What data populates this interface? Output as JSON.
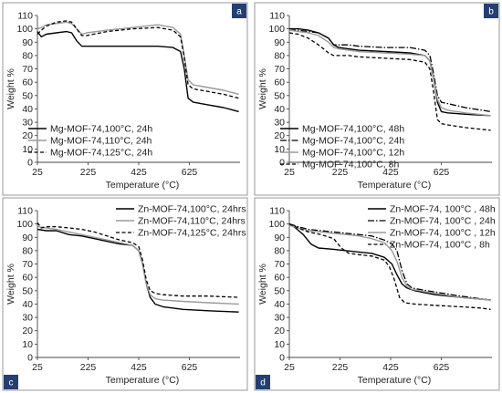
{
  "chart_data": [
    {
      "panel": "a",
      "type": "line",
      "xlabel": "Temperature (°C)",
      "ylabel": "Weight %",
      "xlim": [
        25,
        825
      ],
      "ylim": [
        0,
        110
      ],
      "xticks": [
        25,
        225,
        425,
        625
      ],
      "yticks": [
        0,
        10,
        20,
        30,
        40,
        50,
        60,
        70,
        80,
        90,
        100,
        110
      ],
      "legend_position": "bottom-left",
      "series": [
        {
          "name": "Mg-MOF-74,100°C, 24h",
          "style": "solid-black",
          "x": [
            25,
            40,
            60,
            100,
            140,
            160,
            180,
            200,
            220,
            300,
            400,
            500,
            560,
            590,
            605,
            620,
            640,
            700,
            760,
            820
          ],
          "y": [
            98,
            94,
            96,
            97,
            98,
            97,
            91,
            87,
            87,
            87,
            87,
            87,
            86,
            83,
            70,
            48,
            45,
            43,
            41,
            38
          ]
        },
        {
          "name": "Mg-MOF-74,110°C, 24h",
          "style": "solid-gray",
          "x": [
            25,
            40,
            60,
            100,
            140,
            160,
            180,
            200,
            220,
            300,
            400,
            500,
            560,
            590,
            605,
            620,
            640,
            700,
            760,
            820
          ],
          "y": [
            100,
            101,
            103,
            104,
            105,
            104,
            100,
            96,
            97,
            99,
            101,
            103,
            101,
            96,
            80,
            62,
            58,
            56,
            54,
            51
          ]
        },
        {
          "name": "Mg-MOF-74,125°C, 24h",
          "style": "dashed-black",
          "x": [
            25,
            40,
            60,
            100,
            140,
            160,
            180,
            200,
            220,
            300,
            400,
            500,
            560,
            590,
            605,
            620,
            640,
            700,
            760,
            820
          ],
          "y": [
            96,
            99,
            102,
            105,
            106,
            105,
            100,
            95,
            95,
            98,
            100,
            101,
            99,
            94,
            78,
            58,
            55,
            53,
            51,
            48
          ]
        }
      ]
    },
    {
      "panel": "b",
      "type": "line",
      "xlabel": "Temperature (°C)",
      "ylabel": "Weight %",
      "xlim": [
        25,
        825
      ],
      "ylim": [
        0,
        110
      ],
      "xticks": [
        25,
        225,
        425,
        625
      ],
      "yticks": [
        0,
        10,
        20,
        30,
        40,
        50,
        60,
        70,
        80,
        90,
        100,
        110
      ],
      "legend_position": "bottom-left",
      "series": [
        {
          "name": "Mg-MOF-74,100°C, 48h",
          "style": "solid-black",
          "x": [
            25,
            60,
            100,
            140,
            180,
            200,
            220,
            260,
            300,
            400,
            500,
            560,
            580,
            595,
            610,
            625,
            650,
            720,
            820
          ],
          "y": [
            100,
            100,
            99,
            97,
            93,
            88,
            86,
            85,
            84,
            83,
            82,
            80,
            76,
            62,
            45,
            38,
            37,
            36,
            35
          ]
        },
        {
          "name": "Mg-MOF-74,100°C, 24h",
          "style": "dashdot-black",
          "x": [
            25,
            60,
            100,
            140,
            180,
            200,
            220,
            260,
            300,
            400,
            500,
            560,
            580,
            595,
            610,
            625,
            650,
            720,
            820
          ],
          "y": [
            99,
            99,
            98,
            97,
            93,
            88,
            88,
            88,
            87,
            86,
            86,
            84,
            80,
            66,
            50,
            45,
            44,
            41,
            38
          ]
        },
        {
          "name": "Mg-MOF-74,100°C, 12h",
          "style": "solid-gray",
          "x": [
            25,
            60,
            100,
            140,
            180,
            200,
            220,
            260,
            300,
            400,
            500,
            560,
            580,
            595,
            610,
            625,
            650,
            720,
            820
          ],
          "y": [
            99,
            98,
            97,
            95,
            90,
            86,
            85,
            84,
            83,
            82,
            81,
            80,
            76,
            62,
            47,
            41,
            39,
            37,
            35
          ]
        },
        {
          "name": "Mg-MOF-74,100°C, 8h",
          "style": "dashed-black",
          "x": [
            25,
            60,
            100,
            140,
            180,
            200,
            220,
            260,
            300,
            400,
            500,
            560,
            580,
            595,
            610,
            625,
            650,
            720,
            820
          ],
          "y": [
            97,
            96,
            93,
            88,
            82,
            80,
            80,
            80,
            79,
            78,
            77,
            75,
            70,
            52,
            32,
            29,
            28,
            26,
            24
          ]
        }
      ]
    },
    {
      "panel": "c",
      "type": "line",
      "xlabel": "Temperature (°C)",
      "ylabel": "Weight %",
      "xlim": [
        25,
        825
      ],
      "ylim": [
        0,
        110
      ],
      "xticks": [
        25,
        225,
        425,
        625
      ],
      "yticks": [
        0,
        10,
        20,
        30,
        40,
        50,
        60,
        70,
        80,
        90,
        100,
        110
      ],
      "legend_position": "top-right",
      "series": [
        {
          "name": "Zn-MOF-74,100°C, 24hrs",
          "style": "solid-black",
          "x": [
            25,
            60,
            100,
            150,
            200,
            250,
            300,
            350,
            400,
            425,
            440,
            455,
            470,
            490,
            520,
            600,
            700,
            820
          ],
          "y": [
            96,
            95,
            95,
            92,
            91,
            89,
            87,
            85,
            84,
            80,
            70,
            55,
            45,
            40,
            38,
            36,
            35,
            34
          ]
        },
        {
          "name": "Zn-MOF-74,110°C, 24hrs",
          "style": "solid-gray",
          "x": [
            25,
            60,
            100,
            150,
            200,
            250,
            300,
            350,
            400,
            425,
            440,
            455,
            470,
            490,
            520,
            600,
            700,
            820
          ],
          "y": [
            98,
            97,
            96,
            94,
            92,
            90,
            88,
            86,
            84,
            80,
            70,
            55,
            47,
            44,
            43,
            42,
            41,
            40
          ]
        },
        {
          "name": "Zn-MOF-74,125°C, 24hrs",
          "style": "dashed-black",
          "x": [
            25,
            40,
            60,
            100,
            150,
            200,
            250,
            300,
            350,
            400,
            425,
            440,
            455,
            470,
            490,
            520,
            600,
            700,
            820
          ],
          "y": [
            101,
            97,
            98,
            98,
            97,
            96,
            94,
            91,
            88,
            86,
            83,
            73,
            58,
            50,
            48,
            47,
            46,
            46,
            45
          ]
        }
      ]
    },
    {
      "panel": "d",
      "type": "line",
      "xlabel": "Temperature (°C)",
      "ylabel": "Weight %",
      "xlim": [
        25,
        825
      ],
      "ylim": [
        0,
        110
      ],
      "xticks": [
        25,
        225,
        425,
        625
      ],
      "yticks": [
        0,
        10,
        20,
        30,
        40,
        50,
        60,
        70,
        80,
        90,
        100,
        110
      ],
      "legend_position": "top-right",
      "series": [
        {
          "name": "Zn-MOF-74, 100°C , 48h",
          "style": "solid-black",
          "x": [
            25,
            50,
            80,
            110,
            140,
            200,
            250,
            300,
            350,
            400,
            430,
            450,
            470,
            490,
            520,
            600,
            700,
            820
          ],
          "y": [
            100,
            97,
            92,
            85,
            82,
            81,
            80,
            79,
            78,
            75,
            70,
            62,
            55,
            52,
            50,
            47,
            45,
            43
          ]
        },
        {
          "name": "Zn-MOF-74, 100°C , 24h",
          "style": "dashdot-black",
          "x": [
            25,
            60,
            100,
            150,
            200,
            250,
            300,
            350,
            400,
            430,
            450,
            470,
            490,
            510,
            540,
            600,
            700,
            820
          ],
          "y": [
            100,
            98,
            96,
            95,
            94,
            93,
            92,
            91,
            88,
            85,
            80,
            65,
            55,
            52,
            51,
            49,
            46,
            43
          ]
        },
        {
          "name": "Zn-MOF-74, 100°C , 12h",
          "style": "solid-gray",
          "x": [
            25,
            60,
            100,
            150,
            200,
            250,
            300,
            350,
            400,
            430,
            450,
            470,
            490,
            510,
            540,
            600,
            700,
            820
          ],
          "y": [
            99,
            97,
            95,
            94,
            93,
            92,
            91,
            89,
            86,
            80,
            72,
            60,
            53,
            51,
            50,
            48,
            45,
            43
          ]
        },
        {
          "name": "Zn-MOF-74, 100°C , 8h",
          "style": "dashed-black",
          "x": [
            25,
            60,
            100,
            150,
            200,
            230,
            260,
            300,
            350,
            400,
            420,
            440,
            460,
            480,
            520,
            600,
            700,
            780,
            820
          ],
          "y": [
            100,
            97,
            94,
            92,
            89,
            82,
            78,
            77,
            76,
            73,
            68,
            58,
            45,
            41,
            40,
            39,
            38,
            37,
            36
          ]
        }
      ]
    }
  ]
}
